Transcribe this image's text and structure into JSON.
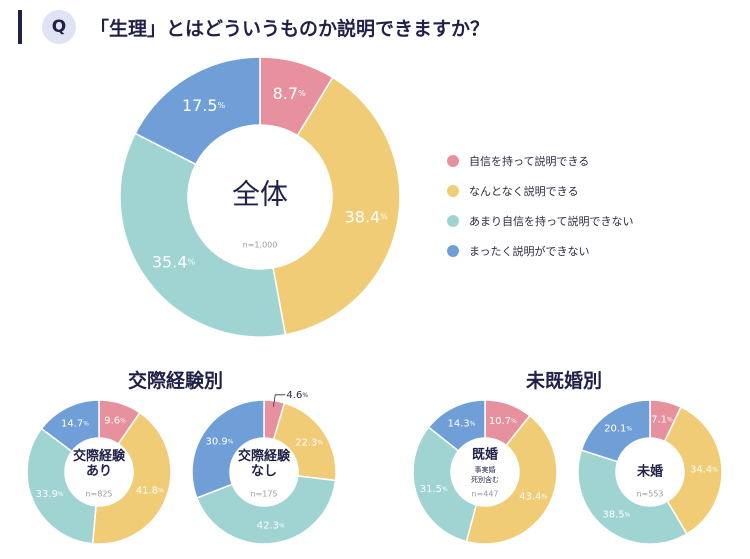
{
  "question": {
    "badge": "Q",
    "text": "「生理」とはどういうものか説明できますか？"
  },
  "colors": {
    "c0": "#e8919e",
    "c1": "#f1cc76",
    "c2": "#9fd4d2",
    "c3": "#6f9fd6",
    "text": "#2b2b44",
    "dark": "#1f2148"
  },
  "legend": [
    {
      "label": "自信を持って説明できる",
      "color": "#e8919e"
    },
    {
      "label": "なんとなく説明できる",
      "color": "#f1cc76"
    },
    {
      "label": "あまり自信を持って説明できない",
      "color": "#9fd4d2"
    },
    {
      "label": "まったく説明ができない",
      "color": "#6f9fd6"
    }
  ],
  "sections": {
    "relationship": "交際経験別",
    "marital": "未既婚別"
  },
  "chart_data": [
    {
      "type": "pie",
      "id": "main",
      "title": "全体",
      "subtitle": "",
      "n": "n=1,000",
      "categories": [
        "自信を持って説明できる",
        "なんとなく説明できる",
        "あまり自信を持って説明できない",
        "まったく説明ができない"
      ],
      "values": [
        8.7,
        38.4,
        35.4,
        17.5
      ],
      "labels": [
        "8.7",
        "38.4",
        "35.4",
        "17.5"
      ]
    },
    {
      "type": "pie",
      "id": "rel-yes",
      "title": "交際経験|あり",
      "subtitle": "",
      "n": "n=825",
      "categories": [
        "自信を持って説明できる",
        "なんとなく説明できる",
        "あまり自信を持って説明できない",
        "まったく説明ができない"
      ],
      "values": [
        9.6,
        41.8,
        33.9,
        14.7
      ],
      "labels": [
        "9.6",
        "41.8",
        "33.9",
        "14.7"
      ]
    },
    {
      "type": "pie",
      "id": "rel-no",
      "title": "交際経験|なし",
      "subtitle": "",
      "n": "n=175",
      "categories": [
        "自信を持って説明できる",
        "なんとなく説明できる",
        "あまり自信を持って説明できない",
        "まったく説明ができない"
      ],
      "values": [
        4.6,
        22.3,
        42.3,
        30.9
      ],
      "labels": [
        "4.6",
        "22.3",
        "42.3",
        "30.9"
      ]
    },
    {
      "type": "pie",
      "id": "married",
      "title": "既婚",
      "subtitle": "事実婚|死別含む",
      "n": "n=447",
      "categories": [
        "自信を持って説明できる",
        "なんとなく説明できる",
        "あまり自信を持って説明できない",
        "まったく説明ができない"
      ],
      "values": [
        10.7,
        43.4,
        31.5,
        14.3
      ],
      "labels": [
        "10.7",
        "43.4",
        "31.5",
        "14.3"
      ]
    },
    {
      "type": "pie",
      "id": "unmarried",
      "title": "未婚",
      "subtitle": "",
      "n": "n=553",
      "categories": [
        "自信を持って説明できる",
        "なんとなく説明できる",
        "あまり自信を持って説明できない",
        "まったく説明ができない"
      ],
      "values": [
        7.1,
        34.4,
        38.5,
        20.1
      ],
      "labels": [
        "7.1",
        "34.4",
        "38.5",
        "20.1"
      ]
    }
  ]
}
